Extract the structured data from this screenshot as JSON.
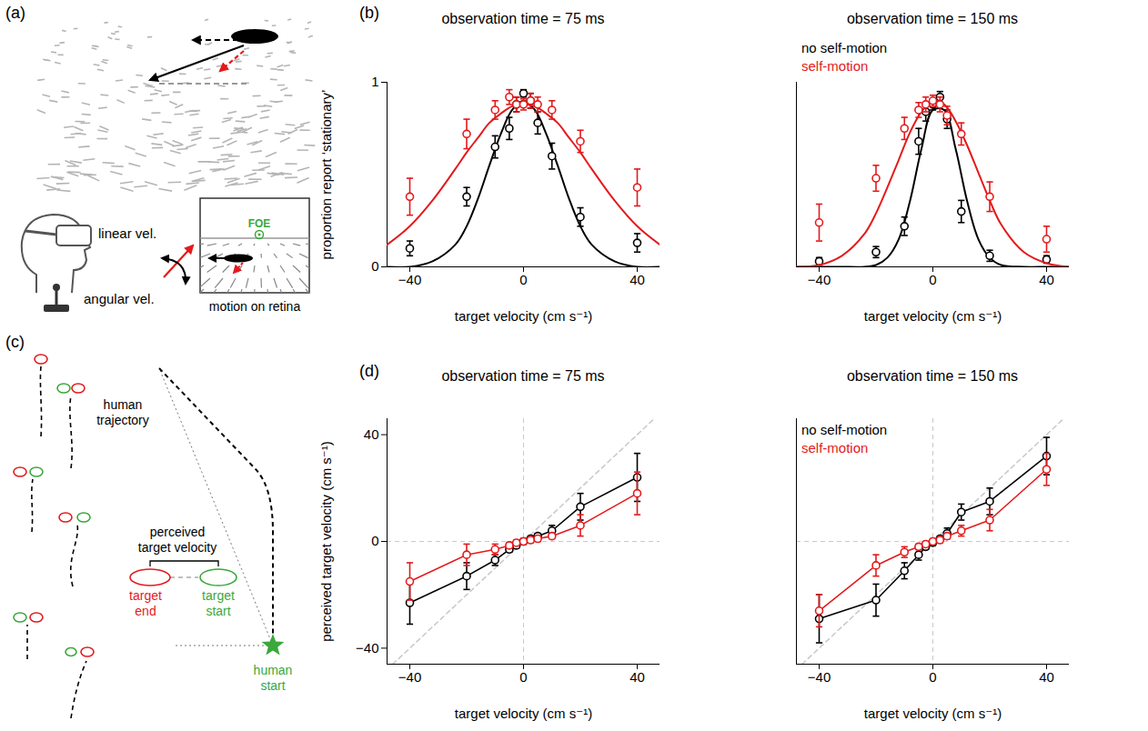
{
  "panel_labels": [
    "(a)",
    "(b)",
    "(c)",
    "(d)"
  ],
  "diagram_a": {
    "linear_label": "linear vel.",
    "angular_label": "angular vel.",
    "inset_label": "motion on retina",
    "foe_label": "FOE"
  },
  "diagram_c": {
    "trajectory_label": "human trajectory",
    "velocity_label": "perceived target velocity",
    "end_label": "target end",
    "start_label": "target start",
    "human_label": "human start"
  },
  "chart_data": [
    {
      "type": "scatter",
      "title": "observation time = 75 ms",
      "x_label": "target velocity (cm s⁻¹)",
      "y_label": "proportion report ‘stationary’",
      "xlim": [
        -48,
        48
      ],
      "xticks": [
        -40,
        0,
        40
      ],
      "ylim": [
        0,
        1
      ],
      "yticks": [
        0,
        1
      ],
      "series": [
        {
          "name": "no self-motion",
          "color": "#000000",
          "marker": "circle",
          "x": [
            -40,
            -20,
            -10,
            -5,
            -2.5,
            0,
            2.5,
            5,
            10,
            20,
            40
          ],
          "values": [
            0.1,
            0.38,
            0.65,
            0.75,
            0.88,
            0.94,
            0.9,
            0.78,
            0.6,
            0.27,
            0.13
          ],
          "errors": [
            0.04,
            0.05,
            0.06,
            0.06,
            0.04,
            0.02,
            0.04,
            0.06,
            0.07,
            0.05,
            0.05
          ],
          "fit": {
            "line_style": "solid",
            "x": [
              -48,
              -40,
              -32,
              -24,
              -20,
              -16,
              -12,
              -8,
              -4,
              0,
              4,
              8,
              12,
              16,
              20,
              24,
              32,
              40,
              48
            ],
            "values": [
              0,
              0,
              0.03,
              0.12,
              0.22,
              0.37,
              0.55,
              0.72,
              0.85,
              0.9,
              0.85,
              0.72,
              0.55,
              0.37,
              0.22,
              0.12,
              0.03,
              0,
              0
            ]
          }
        },
        {
          "name": "self-motion",
          "color": "#e41a1c",
          "marker": "circle",
          "x": [
            -40,
            -20,
            -10,
            -5,
            -2.5,
            0,
            2.5,
            5,
            10,
            20,
            40
          ],
          "values": [
            0.38,
            0.72,
            0.85,
            0.92,
            0.88,
            0.88,
            0.9,
            0.88,
            0.85,
            0.68,
            0.43
          ],
          "errors": [
            0.1,
            0.08,
            0.05,
            0.04,
            0.04,
            0.03,
            0.04,
            0.04,
            0.05,
            0.06,
            0.1
          ],
          "fit": {
            "line_style": "solid",
            "x": [
              -48,
              -40,
              -32,
              -24,
              -20,
              -16,
              -12,
              -8,
              -4,
              0,
              4,
              8,
              12,
              16,
              20,
              24,
              32,
              40,
              48
            ],
            "values": [
              0.12,
              0.22,
              0.36,
              0.53,
              0.62,
              0.7,
              0.78,
              0.83,
              0.87,
              0.88,
              0.87,
              0.83,
              0.78,
              0.7,
              0.62,
              0.53,
              0.36,
              0.22,
              0.12
            ]
          }
        }
      ]
    },
    {
      "type": "scatter",
      "title": "observation time = 150 ms",
      "x_label": "target velocity (cm s⁻¹)",
      "xlim": [
        -48,
        48
      ],
      "xticks": [
        -40,
        0,
        40
      ],
      "ylim": [
        0,
        1
      ],
      "yticks": [
        0,
        1
      ],
      "tick_labels": "x",
      "legend": "top-left",
      "series": [
        {
          "name": "no self-motion",
          "color": "#000000",
          "marker": "circle",
          "x": [
            -40,
            -20,
            -10,
            -5,
            -2.5,
            0,
            2.5,
            5,
            10,
            20,
            40
          ],
          "values": [
            0.03,
            0.08,
            0.22,
            0.68,
            0.84,
            0.88,
            0.92,
            0.8,
            0.3,
            0.06,
            0.04
          ],
          "errors": [
            0.02,
            0.03,
            0.05,
            0.07,
            0.05,
            0.03,
            0.03,
            0.05,
            0.06,
            0.03,
            0.02
          ],
          "fit": {
            "line_style": "solid",
            "x": [
              -48,
              -40,
              -32,
              -24,
              -20,
              -16,
              -12,
              -8,
              -4,
              0,
              4,
              8,
              12,
              16,
              20,
              24,
              32,
              40,
              48
            ],
            "values": [
              0,
              0,
              0,
              0,
              0.01,
              0.05,
              0.15,
              0.36,
              0.64,
              0.85,
              0.85,
              0.64,
              0.36,
              0.15,
              0.05,
              0.01,
              0,
              0,
              0
            ]
          }
        },
        {
          "name": "self-motion",
          "color": "#e41a1c",
          "marker": "circle",
          "x": [
            -40,
            -20,
            -10,
            -5,
            -2.5,
            0,
            2.5,
            5,
            10,
            20,
            40
          ],
          "values": [
            0.24,
            0.48,
            0.75,
            0.85,
            0.88,
            0.9,
            0.88,
            0.82,
            0.72,
            0.38,
            0.15
          ],
          "errors": [
            0.1,
            0.07,
            0.06,
            0.04,
            0.04,
            0.03,
            0.04,
            0.05,
            0.06,
            0.08,
            0.07
          ],
          "fit": {
            "line_style": "solid",
            "x": [
              -48,
              -40,
              -32,
              -24,
              -20,
              -16,
              -12,
              -8,
              -4,
              0,
              4,
              8,
              12,
              16,
              20,
              24,
              32,
              40,
              48
            ],
            "values": [
              0,
              0.01,
              0.06,
              0.18,
              0.29,
              0.43,
              0.58,
              0.73,
              0.84,
              0.9,
              0.88,
              0.79,
              0.66,
              0.51,
              0.36,
              0.23,
              0.08,
              0.02,
              0
            ]
          }
        }
      ]
    },
    {
      "type": "line",
      "title": "observation time = 75 ms",
      "x_label": "target velocity (cm s⁻¹)",
      "y_label": "perceived target velocity (cm s⁻¹)",
      "xlim": [
        -48,
        48
      ],
      "xticks": [
        -40,
        0,
        40
      ],
      "ylim": [
        -46,
        46
      ],
      "yticks": [
        -40,
        0,
        40
      ],
      "series": [
        {
          "name": "no self-motion",
          "color": "#000000",
          "marker": "circle",
          "x": [
            -40,
            -20,
            -10,
            -5,
            -2.5,
            0,
            2.5,
            5,
            10,
            20,
            40
          ],
          "values": [
            -23,
            -13,
            -7,
            -3,
            -1.5,
            0,
            1,
            2,
            4,
            13,
            24
          ],
          "errors": [
            8,
            5,
            2,
            1,
            1,
            1,
            1,
            1,
            2,
            5,
            9
          ]
        },
        {
          "name": "self-motion",
          "color": "#e41a1c",
          "marker": "circle",
          "x": [
            -40,
            -20,
            -10,
            -5,
            -2.5,
            0,
            2.5,
            5,
            10,
            20,
            40
          ],
          "values": [
            -15,
            -5,
            -3,
            -1.5,
            -0.5,
            0,
            0.5,
            1,
            2,
            6,
            18
          ],
          "errors": [
            7,
            4,
            2,
            1,
            1,
            1,
            1,
            1,
            1,
            4,
            8
          ]
        }
      ]
    },
    {
      "type": "line",
      "title": "observation time = 150 ms",
      "x_label": "target velocity (cm s⁻¹)",
      "xlim": [
        -48,
        48
      ],
      "xticks": [
        -40,
        0,
        40
      ],
      "ylim": [
        -46,
        46
      ],
      "yticks": [
        -40,
        0,
        40
      ],
      "tick_labels": "x",
      "legend": "top-left",
      "series": [
        {
          "name": "no self-motion",
          "color": "#000000",
          "marker": "circle",
          "x": [
            -40,
            -20,
            -10,
            -5,
            -2.5,
            0,
            2.5,
            5,
            10,
            20,
            40
          ],
          "values": [
            -29,
            -22,
            -11,
            -5,
            -2,
            -0.5,
            1,
            3,
            11,
            15,
            32
          ],
          "errors": [
            9,
            6,
            3,
            2,
            1,
            1,
            1,
            2,
            3,
            5,
            7
          ]
        },
        {
          "name": "self-motion",
          "color": "#e41a1c",
          "marker": "circle",
          "x": [
            -40,
            -20,
            -10,
            -5,
            -2.5,
            0,
            2.5,
            5,
            10,
            20,
            40
          ],
          "values": [
            -26,
            -9,
            -4,
            -2,
            -1,
            0,
            0.5,
            2,
            4,
            8,
            27
          ],
          "errors": [
            6,
            4,
            2,
            1,
            1,
            1,
            1,
            1,
            2,
            4,
            6
          ]
        }
      ]
    }
  ]
}
